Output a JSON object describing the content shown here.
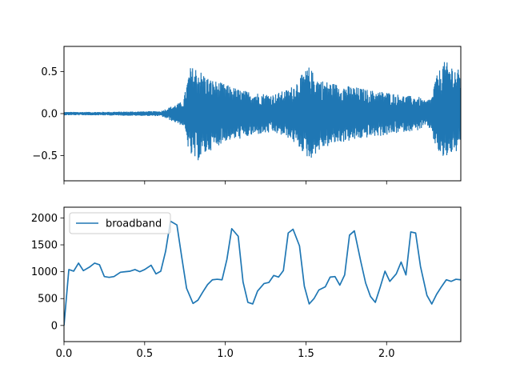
{
  "chart_data": [
    {
      "type": "line",
      "title": "",
      "xlabel": "",
      "ylabel": "",
      "xlim": [
        0,
        2.46
      ],
      "ylim": [
        -0.8,
        0.8
      ],
      "grid": false,
      "x_ticks": [
        0,
        0.5,
        1.0,
        1.5,
        2.0
      ],
      "x_tick_labels": [
        "",
        "",
        "",
        "",
        ""
      ],
      "y_ticks": [
        -0.5,
        0.0,
        0.5
      ],
      "y_tick_labels": [
        "−0.5",
        "0.0",
        "0.5"
      ],
      "series": [
        {
          "color": "#1f77b4",
          "envelope": {
            "x": [
              0.0,
              0.2,
              0.6,
              0.74,
              0.78,
              0.82,
              0.9,
              1.0,
              1.1,
              1.2,
              1.3,
              1.4,
              1.5,
              1.52,
              1.56,
              1.6,
              1.7,
              1.8,
              1.9,
              2.0,
              2.1,
              2.2,
              2.24,
              2.28,
              2.3,
              2.35,
              2.4,
              2.46
            ],
            "upper": [
              0.02,
              0.02,
              0.03,
              0.15,
              0.55,
              0.56,
              0.42,
              0.35,
              0.28,
              0.25,
              0.23,
              0.3,
              0.52,
              0.56,
              0.45,
              0.4,
              0.35,
              0.32,
              0.28,
              0.26,
              0.22,
              0.2,
              0.15,
              0.2,
              0.4,
              0.62,
              0.6,
              0.5
            ],
            "lower": [
              -0.02,
              -0.02,
              -0.03,
              -0.15,
              -0.5,
              -0.58,
              -0.45,
              -0.33,
              -0.3,
              -0.25,
              -0.23,
              -0.3,
              -0.5,
              -0.56,
              -0.48,
              -0.42,
              -0.35,
              -0.32,
              -0.28,
              -0.26,
              -0.22,
              -0.2,
              -0.15,
              -0.2,
              -0.4,
              -0.55,
              -0.48,
              -0.45
            ]
          }
        }
      ]
    },
    {
      "type": "line",
      "title": "",
      "xlabel": "",
      "ylabel": "",
      "xlim": [
        0,
        2.46
      ],
      "ylim": [
        -300,
        2200
      ],
      "grid": false,
      "legend_position": "upper-left",
      "x_ticks": [
        0,
        0.5,
        1.0,
        1.5,
        2.0
      ],
      "x_tick_labels": [
        "0.0",
        "0.5",
        "1.0",
        "1.5",
        "2.0"
      ],
      "y_ticks": [
        0,
        500,
        1000,
        1500,
        2000
      ],
      "y_tick_labels": [
        "0",
        "500",
        "1000",
        "1500",
        "2000"
      ],
      "series": [
        {
          "name": "broadband",
          "color": "#1f77b4",
          "x": [
            0.0,
            0.03,
            0.06,
            0.09,
            0.12,
            0.16,
            0.19,
            0.22,
            0.25,
            0.28,
            0.31,
            0.35,
            0.38,
            0.41,
            0.44,
            0.47,
            0.5,
            0.54,
            0.57,
            0.6,
            0.63,
            0.66,
            0.7,
            0.73,
            0.76,
            0.8,
            0.83,
            0.86,
            0.89,
            0.92,
            0.95,
            0.98,
            1.01,
            1.04,
            1.08,
            1.11,
            1.14,
            1.17,
            1.2,
            1.24,
            1.27,
            1.3,
            1.33,
            1.36,
            1.39,
            1.42,
            1.46,
            1.49,
            1.52,
            1.55,
            1.58,
            1.62,
            1.65,
            1.68,
            1.71,
            1.74,
            1.77,
            1.8,
            1.84,
            1.87,
            1.9,
            1.93,
            1.96,
            1.99,
            2.02,
            2.06,
            2.09,
            2.12,
            2.15,
            2.18,
            2.21,
            2.25,
            2.28,
            2.31,
            2.34,
            2.37,
            2.4,
            2.43,
            2.46
          ],
          "values": [
            0,
            1040,
            1010,
            1160,
            1020,
            1090,
            1160,
            1130,
            910,
            895,
            910,
            990,
            1000,
            1010,
            1040,
            1000,
            1040,
            1120,
            960,
            1010,
            1380,
            1940,
            1870,
            1270,
            690,
            410,
            470,
            620,
            760,
            850,
            860,
            850,
            1230,
            1800,
            1660,
            810,
            430,
            400,
            640,
            780,
            800,
            930,
            900,
            1020,
            1720,
            1790,
            1480,
            730,
            400,
            500,
            660,
            720,
            900,
            910,
            750,
            940,
            1680,
            1760,
            1190,
            790,
            540,
            430,
            710,
            1010,
            820,
            960,
            1180,
            940,
            1740,
            1720,
            1100,
            560,
            400,
            580,
            720,
            850,
            820,
            860,
            850
          ]
        }
      ]
    }
  ]
}
